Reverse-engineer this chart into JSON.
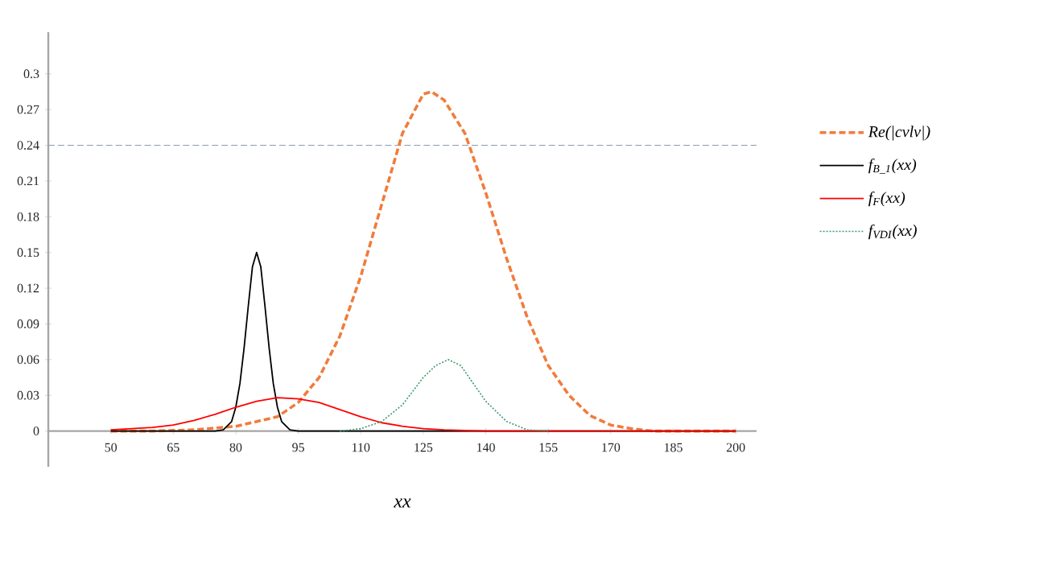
{
  "chart_data": {
    "type": "line",
    "xlabel": "xx",
    "xlim": [
      35,
      205
    ],
    "ylim": [
      -0.03,
      0.335
    ],
    "xticks": [
      50,
      65,
      80,
      95,
      110,
      125,
      140,
      155,
      170,
      185,
      200
    ],
    "yticks": [
      0,
      0.03,
      0.06,
      0.09,
      0.12,
      0.15,
      0.18,
      0.21,
      0.24,
      0.27,
      0.3
    ],
    "grid": false,
    "legend": "right",
    "ref_lines": [
      {
        "axis": "y",
        "value": 0.24,
        "color": "#8a9aae",
        "line_style": "dashed"
      }
    ],
    "series": [
      {
        "name": "Re(|cvlv|)",
        "color": "#f07c3c",
        "line_style": "dashed",
        "x": [
          50,
          60,
          70,
          80,
          90,
          95,
          100,
          105,
          110,
          115,
          120,
          125,
          127,
          130,
          135,
          140,
          145,
          150,
          155,
          160,
          165,
          170,
          175,
          180,
          190,
          200
        ],
        "values": [
          0,
          0,
          0.001,
          0.004,
          0.012,
          0.024,
          0.045,
          0.08,
          0.13,
          0.19,
          0.25,
          0.283,
          0.285,
          0.278,
          0.25,
          0.2,
          0.145,
          0.095,
          0.055,
          0.03,
          0.013,
          0.005,
          0.002,
          0,
          0,
          0
        ]
      },
      {
        "name": "f$_{B_1}$(xx)",
        "color": "#000000",
        "line_style": "solid",
        "x": [
          50,
          75,
          77,
          79,
          80,
          81,
          82,
          83,
          84,
          85,
          86,
          87,
          88,
          89,
          90,
          91,
          93,
          95,
          200
        ],
        "values": [
          0,
          0,
          0.001,
          0.008,
          0.02,
          0.04,
          0.07,
          0.105,
          0.138,
          0.15,
          0.138,
          0.105,
          0.07,
          0.04,
          0.02,
          0.008,
          0.001,
          0,
          0
        ]
      },
      {
        "name": "f$_{F}$(xx)",
        "color": "#ff0000",
        "line_style": "solid",
        "x": [
          50,
          55,
          60,
          65,
          70,
          75,
          80,
          85,
          90,
          95,
          100,
          105,
          110,
          115,
          120,
          125,
          130,
          140,
          150,
          200
        ],
        "values": [
          0.001,
          0.002,
          0.003,
          0.005,
          0.009,
          0.014,
          0.02,
          0.025,
          0.028,
          0.027,
          0.024,
          0.018,
          0.012,
          0.007,
          0.004,
          0.002,
          0.001,
          0,
          0,
          0
        ]
      },
      {
        "name": "f$_{VDI}$(xx)",
        "color": "#3a9a6a",
        "line_style": "dotted",
        "x": [
          105,
          110,
          115,
          120,
          125,
          128,
          131,
          134,
          137,
          140,
          145,
          150,
          155
        ],
        "values": [
          0,
          0.002,
          0.008,
          0.022,
          0.045,
          0.055,
          0.06,
          0.055,
          0.04,
          0.025,
          0.008,
          0.001,
          0
        ]
      }
    ]
  }
}
